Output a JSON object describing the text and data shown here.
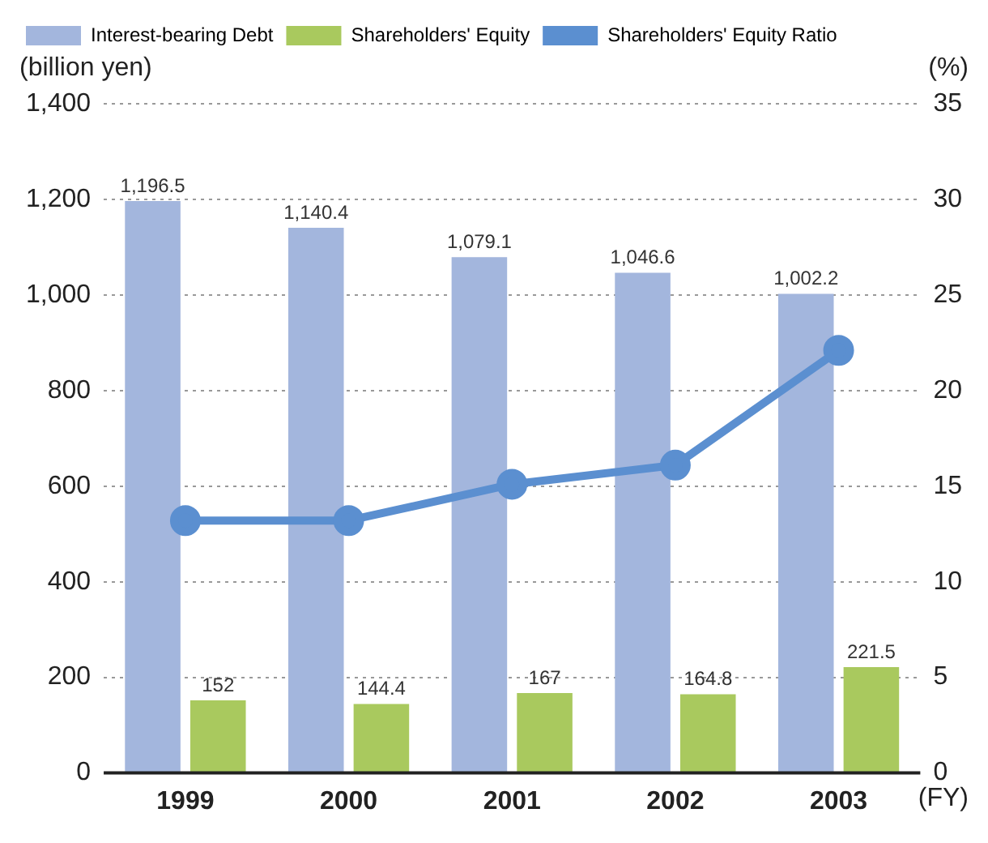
{
  "chart_data": {
    "type": "bar",
    "categories": [
      "1999",
      "2000",
      "2001",
      "2002",
      "2003"
    ],
    "series": [
      {
        "name": "Interest-bearing Debt",
        "color": "#a3b6dd",
        "values": [
          1196.5,
          1140.4,
          1079.1,
          1046.6,
          1002.2
        ],
        "value_labels": [
          "1,196.5",
          "1,140.4",
          "1,079.1",
          "1,046.6",
          "1,002.2"
        ]
      },
      {
        "name": "Shareholders' Equity",
        "color": "#a9c95e",
        "values": [
          152,
          144.4,
          167,
          164.8,
          221.5
        ],
        "value_labels": [
          "152",
          "144.4",
          "167",
          "164.8",
          "221.5"
        ]
      },
      {
        "name": "Shareholders' Equity Ratio",
        "type": "line",
        "axis": "y2",
        "color": "#5b8fd0",
        "values": [
          13.2,
          13.2,
          15.1,
          16.1,
          22.1
        ]
      }
    ],
    "ylabel": "(billion yen)",
    "y2label": "(%)",
    "xlabel": "(FY)",
    "ylim": [
      0,
      1400
    ],
    "yticks": [
      0,
      {
        "value": 200,
        "label": "200"
      },
      {
        "value": 400,
        "label": "400"
      },
      {
        "value": 600,
        "label": "600"
      },
      {
        "value": 800,
        "label": "800"
      },
      {
        "value": 1000,
        "label": "1,000"
      },
      {
        "value": 1200,
        "label": "1,200"
      },
      {
        "value": 1400,
        "label": "1,400"
      }
    ],
    "y2lim": [
      0,
      35
    ],
    "y2ticks": [
      0,
      5,
      10,
      15,
      20,
      25,
      30,
      35
    ],
    "grid": "y",
    "legend": "top",
    "marker": "circle",
    "line_style": "solid"
  }
}
